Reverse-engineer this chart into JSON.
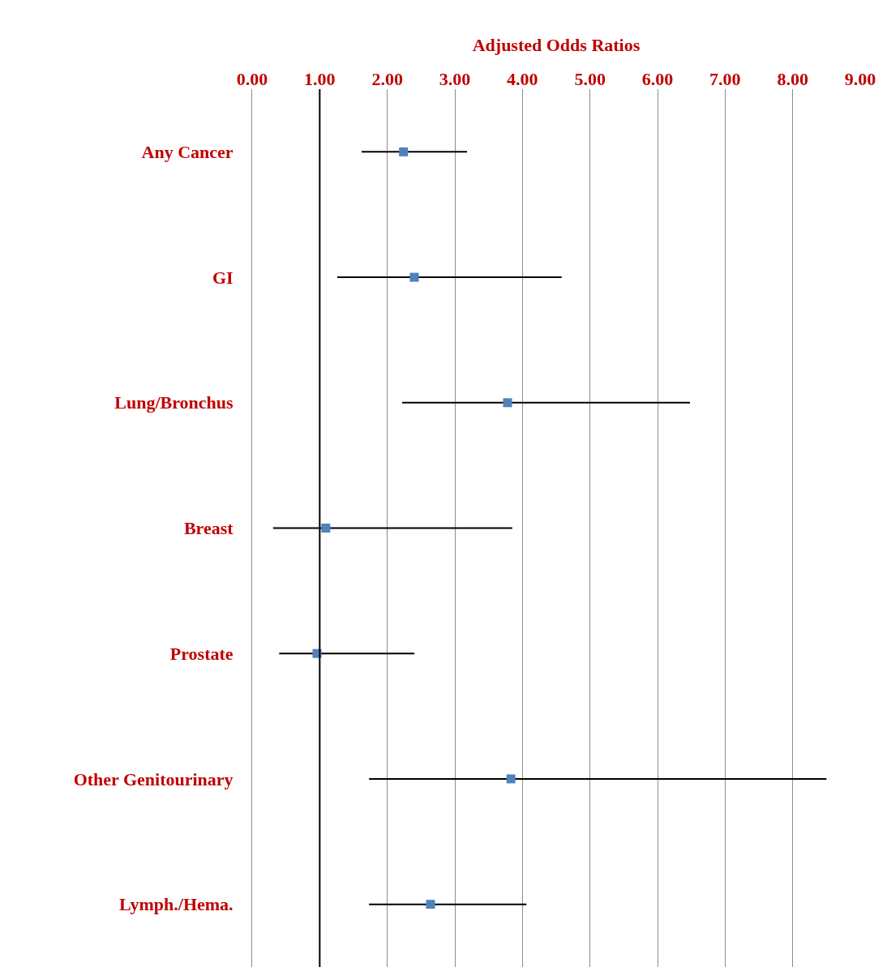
{
  "chart_data": {
    "type": "scatter",
    "orientation": "horizontal",
    "xlabel": "Adjusted Odds Ratios",
    "categories": [
      "Any Cancer",
      "GI",
      "Lung/Bronchus",
      "Breast",
      "Prostate",
      "Other Genitourinary",
      "Lymph./Hema."
    ],
    "values": [
      2.24,
      2.4,
      3.78,
      1.09,
      0.96,
      3.83,
      2.64
    ],
    "errors": [
      [
        1.62,
        3.18
      ],
      [
        1.26,
        4.58
      ],
      [
        2.22,
        6.48
      ],
      [
        0.31,
        3.85
      ],
      [
        0.4,
        2.4
      ],
      [
        1.73,
        8.5
      ],
      [
        1.73,
        4.06
      ]
    ],
    "color": "#4f81bd",
    "marker": "square",
    "xlim": [
      0,
      9
    ],
    "xticks": [
      {
        "value": 0,
        "label": "0.00"
      },
      {
        "value": 1,
        "label": "1.00"
      },
      {
        "value": 2,
        "label": "2.00"
      },
      {
        "value": 3,
        "label": "3.00"
      },
      {
        "value": 4,
        "label": "4.00"
      },
      {
        "value": 5,
        "label": "5.00"
      },
      {
        "value": 6,
        "label": "6.00"
      },
      {
        "value": 7,
        "label": "7.00"
      },
      {
        "value": 8,
        "label": "8.00"
      },
      {
        "value": 9,
        "label": "9.00"
      }
    ],
    "ref_lines": [
      {
        "axis": "x",
        "value": 1,
        "color": "#000000"
      }
    ],
    "grid": "x"
  }
}
